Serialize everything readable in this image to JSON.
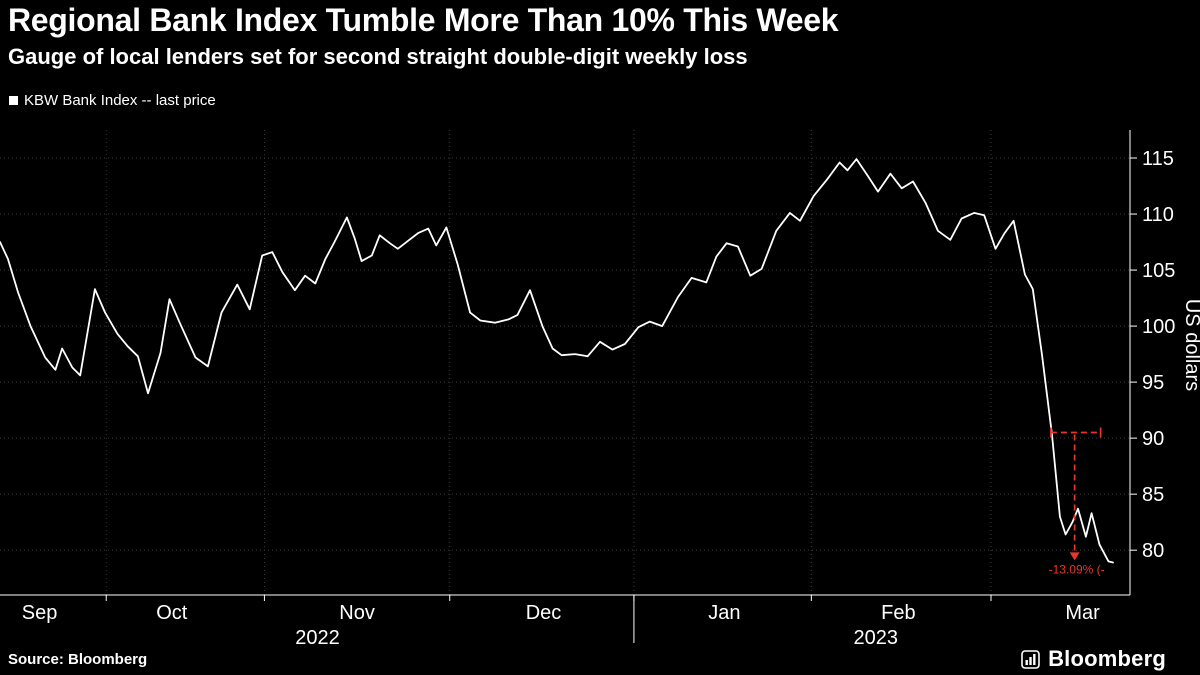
{
  "header": {
    "title": "Regional Bank Index Tumble More Than 10% This Week",
    "subtitle": "Gauge of local lenders set for second straight double-digit weekly loss"
  },
  "legend": {
    "label": "KBW Bank Index -- last price"
  },
  "footer": {
    "source": "Source: Bloomberg",
    "brand": "Bloomberg"
  },
  "colors": {
    "background": "#000000",
    "line": "#ffffff",
    "grid": "#3c3c3c",
    "annotation": "#e8362d",
    "text": "#ffffff"
  },
  "chart_data": {
    "type": "line",
    "title": "Regional Bank Index Tumble More Than 10% This Week",
    "subtitle": "Gauge of local lenders set for second straight double-digit weekly loss",
    "ylabel": "US dollars",
    "ylim": [
      76,
      117.5
    ],
    "yticks": [
      80,
      85,
      90,
      95,
      100,
      105,
      110,
      115
    ],
    "grid": true,
    "legend_position": "top-left",
    "last_price": 78.9,
    "x_axis": {
      "start_date": "2022-09-06",
      "end_date": "2023-03-09",
      "tick_labels": [
        {
          "label": "Sep",
          "f": 0.035
        },
        {
          "label": "Oct",
          "f": 0.152
        },
        {
          "label": "Nov",
          "f": 0.316
        },
        {
          "label": "Dec",
          "f": 0.481
        },
        {
          "label": "Jan",
          "f": 0.641
        },
        {
          "label": "Feb",
          "f": 0.795
        },
        {
          "label": "Mar",
          "f": 0.958
        }
      ],
      "year_labels": [
        {
          "label": "2022",
          "f": 0.281
        },
        {
          "label": "2023",
          "f": 0.775
        }
      ],
      "boundaries": [
        0.094,
        0.234,
        0.398,
        0.561,
        0.718,
        0.877
      ],
      "year_separator_f": 0.561
    },
    "series": [
      {
        "name": "KBW Bank Index -- last price",
        "points": [
          [
            0.0,
            107.5
          ],
          [
            0.007,
            106.0
          ],
          [
            0.016,
            103.0
          ],
          [
            0.027,
            100.0
          ],
          [
            0.04,
            97.2
          ],
          [
            0.049,
            96.1
          ],
          [
            0.055,
            98.0
          ],
          [
            0.064,
            96.3
          ],
          [
            0.071,
            95.6
          ],
          [
            0.084,
            103.3
          ],
          [
            0.093,
            101.2
          ],
          [
            0.104,
            99.3
          ],
          [
            0.113,
            98.2
          ],
          [
            0.122,
            97.3
          ],
          [
            0.131,
            94.0
          ],
          [
            0.142,
            97.6
          ],
          [
            0.15,
            102.4
          ],
          [
            0.159,
            100.3
          ],
          [
            0.173,
            97.2
          ],
          [
            0.184,
            96.4
          ],
          [
            0.196,
            101.2
          ],
          [
            0.21,
            103.7
          ],
          [
            0.221,
            101.5
          ],
          [
            0.232,
            106.3
          ],
          [
            0.241,
            106.6
          ],
          [
            0.25,
            104.8
          ],
          [
            0.261,
            103.2
          ],
          [
            0.27,
            104.5
          ],
          [
            0.279,
            103.8
          ],
          [
            0.288,
            106.0
          ],
          [
            0.296,
            107.5
          ],
          [
            0.307,
            109.7
          ],
          [
            0.314,
            107.8
          ],
          [
            0.32,
            105.8
          ],
          [
            0.329,
            106.3
          ],
          [
            0.336,
            108.1
          ],
          [
            0.345,
            107.4
          ],
          [
            0.352,
            106.9
          ],
          [
            0.361,
            107.6
          ],
          [
            0.37,
            108.3
          ],
          [
            0.379,
            108.7
          ],
          [
            0.386,
            107.2
          ],
          [
            0.395,
            108.8
          ],
          [
            0.405,
            105.5
          ],
          [
            0.416,
            101.2
          ],
          [
            0.425,
            100.5
          ],
          [
            0.438,
            100.3
          ],
          [
            0.45,
            100.6
          ],
          [
            0.458,
            101.0
          ],
          [
            0.469,
            103.2
          ],
          [
            0.48,
            100.0
          ],
          [
            0.489,
            98.0
          ],
          [
            0.497,
            97.4
          ],
          [
            0.509,
            97.5
          ],
          [
            0.52,
            97.3
          ],
          [
            0.531,
            98.6
          ],
          [
            0.542,
            97.9
          ],
          [
            0.553,
            98.4
          ],
          [
            0.565,
            99.9
          ],
          [
            0.575,
            100.4
          ],
          [
            0.586,
            100.0
          ],
          [
            0.6,
            102.6
          ],
          [
            0.612,
            104.3
          ],
          [
            0.625,
            103.9
          ],
          [
            0.634,
            106.2
          ],
          [
            0.643,
            107.4
          ],
          [
            0.653,
            107.1
          ],
          [
            0.664,
            104.5
          ],
          [
            0.674,
            105.1
          ],
          [
            0.687,
            108.5
          ],
          [
            0.699,
            110.1
          ],
          [
            0.708,
            109.4
          ],
          [
            0.72,
            111.6
          ],
          [
            0.732,
            113.1
          ],
          [
            0.743,
            114.6
          ],
          [
            0.75,
            113.9
          ],
          [
            0.758,
            114.9
          ],
          [
            0.768,
            113.4
          ],
          [
            0.777,
            112.0
          ],
          [
            0.788,
            113.6
          ],
          [
            0.798,
            112.3
          ],
          [
            0.808,
            112.9
          ],
          [
            0.819,
            111.0
          ],
          [
            0.83,
            108.5
          ],
          [
            0.841,
            107.7
          ],
          [
            0.851,
            109.6
          ],
          [
            0.862,
            110.1
          ],
          [
            0.871,
            109.9
          ],
          [
            0.881,
            106.9
          ],
          [
            0.889,
            108.3
          ],
          [
            0.897,
            109.4
          ],
          [
            0.907,
            104.6
          ],
          [
            0.914,
            103.3
          ],
          [
            0.922,
            97.5
          ],
          [
            0.931,
            90.3
          ],
          [
            0.938,
            83.0
          ],
          [
            0.943,
            81.4
          ],
          [
            0.949,
            82.5
          ],
          [
            0.954,
            83.7
          ],
          [
            0.961,
            81.2
          ],
          [
            0.966,
            83.3
          ],
          [
            0.973,
            80.5
          ],
          [
            0.981,
            79.0
          ],
          [
            0.985,
            78.9
          ]
        ]
      }
    ],
    "annotation": {
      "label": "-13.09% (-",
      "high_value": 90.5,
      "low_value": 79.8,
      "h_span": [
        0.93,
        0.974
      ],
      "v_x": 0.951,
      "label_f": 0.928
    }
  }
}
